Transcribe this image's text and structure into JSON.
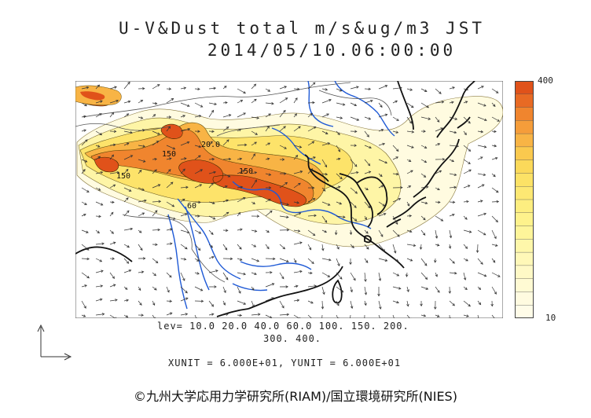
{
  "header": {
    "line1": "U-V&Dust total m/s&ug/m3 JST",
    "line2": "2014/05/10.06:00:00"
  },
  "colorbar": {
    "max_label": "400",
    "min_label": "10",
    "colors_top_to_bottom": [
      "#e0521a",
      "#e86a24",
      "#f0852e",
      "#f59d3a",
      "#f8b445",
      "#fac94e",
      "#fbd95a",
      "#fce266",
      "#fde873",
      "#fdee80",
      "#fef28c",
      "#fef59a",
      "#fef7aa",
      "#fff8b8",
      "#fff9c6",
      "#fffad3",
      "#fffbe0",
      "#fffce8"
    ]
  },
  "map": {
    "contour_labels": [
      "150",
      "150",
      "150",
      "20.0",
      "60"
    ],
    "colors": {
      "coast": "#111111",
      "rivers": "#1f5ad6",
      "borders": "#555555",
      "wind": "#333333"
    }
  },
  "footer": {
    "lev_line1": "lev= 10.0 20.0 40.0 60.0 100. 150. 200.",
    "lev_line2": "300. 400.",
    "unit_line": "XUNIT = 6.000E+01, YUNIT = 6.000E+01",
    "copyright": "©九州大学応用力学研究所(RIAM)/国立環境研究所(NIES)"
  }
}
